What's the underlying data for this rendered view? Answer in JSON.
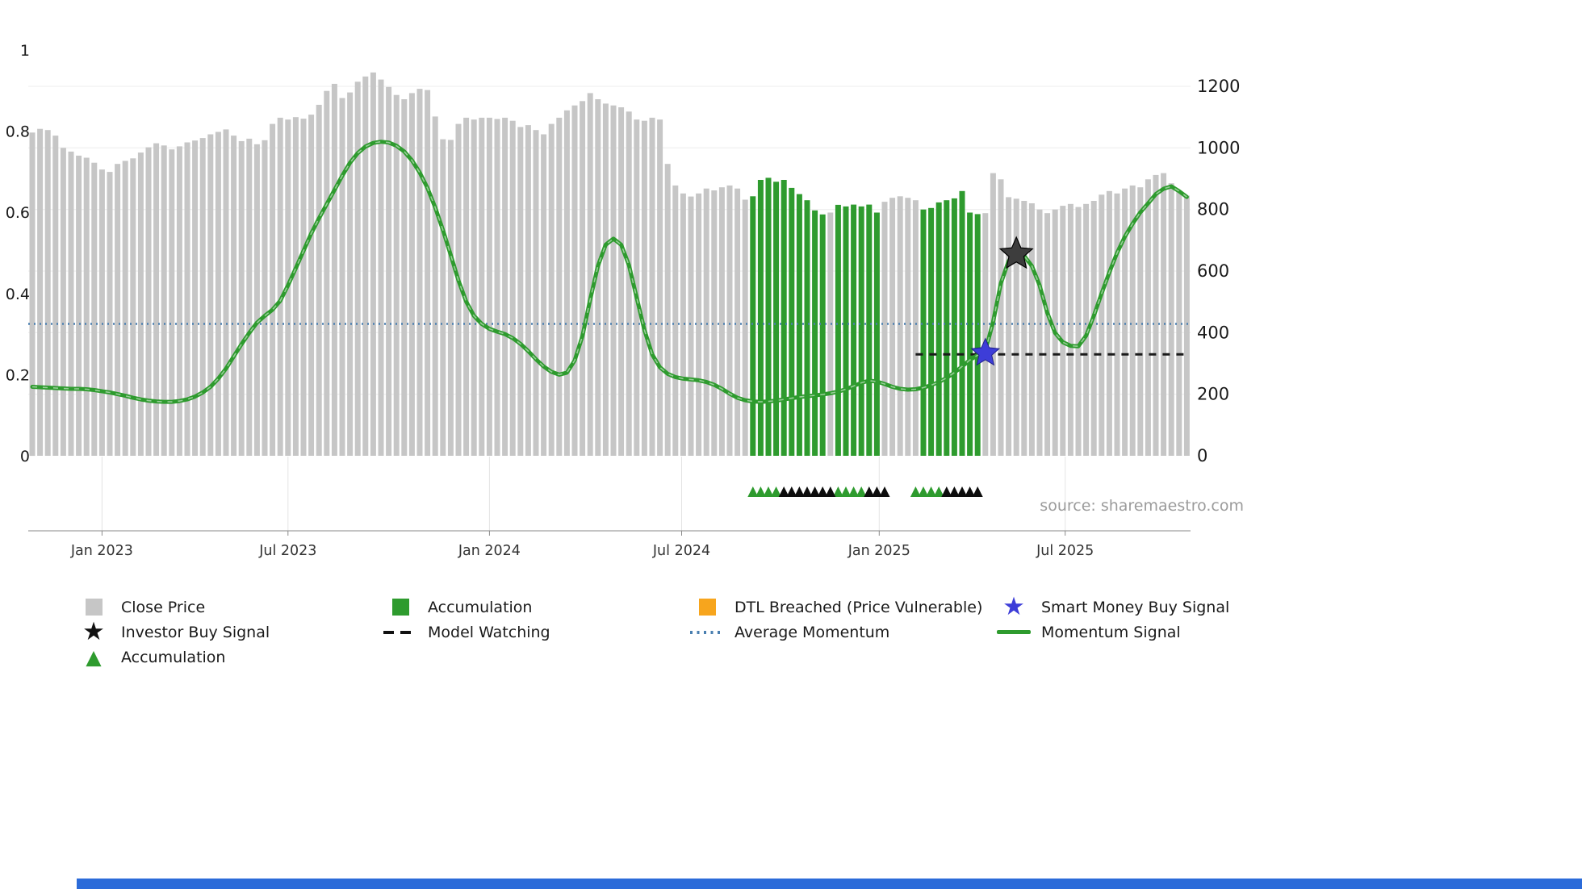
{
  "source_text": "source: sharemaestro.com",
  "icons": {
    "star": "★",
    "triangle": "▲"
  },
  "colors": {
    "close_price": "#c6c6c6",
    "accumulation": "#2e9b2e",
    "dtl_breached": "#f7a51d",
    "smart_money": "#3d3dd8",
    "investor_buy": "#3d3d3d",
    "model_watching": "#1a1a1a",
    "average_momentum": "#4a7fb0",
    "momentum_signal": "#2e9b2e",
    "black_marker": "#0d0d0d",
    "footer_strip": "#2b6bd9"
  },
  "legend": {
    "items": [
      {
        "id": "close-price",
        "label": "Close Price"
      },
      {
        "id": "accumulation-bar",
        "label": "Accumulation"
      },
      {
        "id": "dtl-breached",
        "label": "DTL Breached (Price Vulnerable)"
      },
      {
        "id": "smart-money-buy-signal",
        "label": "Smart Money Buy Signal"
      },
      {
        "id": "investor-buy-signal",
        "label": "Investor Buy Signal"
      },
      {
        "id": "model-watching",
        "label": "Model Watching"
      },
      {
        "id": "average-momentum",
        "label": "Average Momentum"
      },
      {
        "id": "momentum-signal",
        "label": "Momentum Signal"
      },
      {
        "id": "accumulation-marker",
        "label": "Accumulation"
      }
    ]
  },
  "chart_data": {
    "type": "bar",
    "title": "",
    "n_points": 150,
    "x_tick_labels": [
      "Jan 2023",
      "Jul 2023",
      "Jan 2024",
      "Jul 2024",
      "Jan 2025",
      "Jul 2025"
    ],
    "x_tick_indices": [
      9.0,
      33.0,
      59.0,
      83.8,
      109.3,
      133.3
    ],
    "left_axis": {
      "range": [
        0,
        1
      ],
      "ticks": [
        0,
        0.2,
        0.4,
        0.6,
        0.8,
        1
      ],
      "tick_labels": [
        "0",
        "0.2",
        "0.4",
        "0.6",
        "0.8",
        "1"
      ]
    },
    "right_axis": {
      "range": [
        0,
        1200
      ],
      "ticks": [
        0,
        200,
        400,
        600,
        800,
        1000,
        1200
      ],
      "tick_labels": [
        "0",
        "200",
        "400",
        "600",
        "800",
        "1000",
        "1200"
      ]
    },
    "series": [
      {
        "name": "Close Price",
        "type": "bar",
        "axis": "right",
        "values": [
          1050,
          1062,
          1058,
          1040,
          1000,
          988,
          975,
          968,
          952,
          930,
          922,
          948,
          958,
          966,
          985,
          1002,
          1015,
          1008,
          995,
          1005,
          1018,
          1024,
          1032,
          1044,
          1052,
          1060,
          1040,
          1022,
          1030,
          1012,
          1025,
          1078,
          1098,
          1092,
          1100,
          1095,
          1108,
          1140,
          1185,
          1208,
          1162,
          1180,
          1215,
          1232,
          1245,
          1222,
          1198,
          1172,
          1158,
          1178,
          1192,
          1188,
          1102,
          1028,
          1026,
          1078,
          1098,
          1092,
          1098,
          1098,
          1094,
          1098,
          1088,
          1068,
          1074,
          1058,
          1044,
          1078,
          1098,
          1122,
          1138,
          1152,
          1178,
          1158,
          1144,
          1138,
          1132,
          1118,
          1092,
          1088,
          1098,
          1092,
          948,
          878,
          852,
          842,
          852,
          868,
          862,
          872,
          878,
          868,
          832,
          843,
          896,
          903,
          890,
          896,
          870,
          850,
          830,
          797,
          784,
          790,
          815,
          810,
          816,
          810,
          816,
          790,
          825,
          838,
          843,
          838,
          830,
          800,
          805,
          823,
          830,
          836,
          860,
          790,
          785,
          788,
          918,
          898,
          840,
          835,
          828,
          820,
          800,
          788,
          800,
          812,
          818,
          808,
          818,
          828,
          848,
          860,
          852,
          868,
          878,
          872,
          898,
          912,
          918,
          885,
          858,
          845
        ]
      },
      {
        "name": "Momentum Signal",
        "type": "line",
        "axis": "left",
        "values": [
          0.17,
          0.169,
          0.168,
          0.167,
          0.166,
          0.165,
          0.165,
          0.164,
          0.162,
          0.159,
          0.156,
          0.152,
          0.148,
          0.143,
          0.139,
          0.136,
          0.134,
          0.133,
          0.133,
          0.135,
          0.139,
          0.146,
          0.156,
          0.17,
          0.19,
          0.215,
          0.245,
          0.275,
          0.303,
          0.328,
          0.345,
          0.36,
          0.382,
          0.42,
          0.462,
          0.505,
          0.548,
          0.585,
          0.62,
          0.655,
          0.69,
          0.722,
          0.746,
          0.762,
          0.771,
          0.774,
          0.772,
          0.764,
          0.75,
          0.728,
          0.698,
          0.66,
          0.612,
          0.556,
          0.495,
          0.432,
          0.38,
          0.345,
          0.325,
          0.313,
          0.306,
          0.3,
          0.29,
          0.276,
          0.258,
          0.238,
          0.22,
          0.207,
          0.2,
          0.205,
          0.235,
          0.295,
          0.385,
          0.468,
          0.52,
          0.535,
          0.52,
          0.47,
          0.39,
          0.31,
          0.25,
          0.218,
          0.202,
          0.194,
          0.19,
          0.188,
          0.186,
          0.182,
          0.175,
          0.165,
          0.153,
          0.143,
          0.137,
          0.134,
          0.133,
          0.134,
          0.136,
          0.139,
          0.142,
          0.145,
          0.147,
          0.149,
          0.151,
          0.154,
          0.158,
          0.164,
          0.172,
          0.18,
          0.185,
          0.183,
          0.177,
          0.17,
          0.165,
          0.163,
          0.164,
          0.168,
          0.174,
          0.182,
          0.192,
          0.205,
          0.22,
          0.236,
          0.248,
          0.258,
          0.33,
          0.425,
          0.48,
          0.5,
          0.493,
          0.468,
          0.42,
          0.352,
          0.303,
          0.28,
          0.271,
          0.27,
          0.296,
          0.345,
          0.4,
          0.452,
          0.5,
          0.54,
          0.572,
          0.6,
          0.622,
          0.645,
          0.658,
          0.664,
          0.652,
          0.638
        ]
      }
    ],
    "accumulation_bar_indices": [
      93,
      94,
      95,
      96,
      97,
      98,
      99,
      100,
      101,
      102,
      104,
      105,
      106,
      107,
      108,
      109,
      115,
      116,
      117,
      118,
      119,
      120,
      121,
      122
    ],
    "average_momentum": {
      "axis": "left",
      "value": 0.325
    },
    "model_watching": {
      "axis": "left",
      "value": 0.25,
      "start_index": 114,
      "end_index": 149
    },
    "signals": {
      "smart_money_buy": {
        "index": 123,
        "value": 0.253
      },
      "investor_buy": {
        "index": 127,
        "value": 0.497
      }
    },
    "accumulation_markers": {
      "green_indices": [
        93,
        94,
        95,
        96,
        104,
        105,
        106,
        107,
        114,
        115,
        116,
        117
      ],
      "black_indices": [
        97,
        98,
        99,
        100,
        101,
        102,
        103,
        108,
        109,
        110,
        118,
        119,
        120,
        121,
        122
      ]
    }
  }
}
